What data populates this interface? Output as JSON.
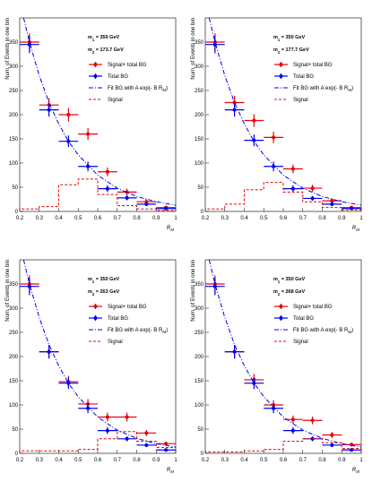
{
  "chart_data": [
    {
      "type": "errorbar",
      "ylabel": "Num. of Events in one bin",
      "xlabel": "R_{M}",
      "annotations": [
        "m_{1} = 350 GeV",
        "m_{2} = 173.7 GeV"
      ],
      "x": [
        0.25,
        0.35,
        0.45,
        0.55,
        0.65,
        0.75,
        0.85,
        0.95
      ],
      "xerr": 0.05,
      "xlim": [
        0.2,
        1
      ],
      "ylim": [
        0,
        400
      ],
      "xticks": [
        0.2,
        0.3,
        0.4,
        0.5,
        0.6,
        0.7,
        0.8,
        0.9,
        1
      ],
      "yticks": [
        0,
        50,
        100,
        150,
        200,
        250,
        300,
        350
      ],
      "series": [
        {
          "name": "Signal+ total BG",
          "color": "#e8000b",
          "values": [
            350,
            220,
            200,
            160,
            82,
            40,
            20,
            8
          ],
          "errors": [
            18,
            14,
            14,
            12,
            9,
            7,
            5,
            3
          ]
        },
        {
          "name": "Total BG",
          "color": "#0000ee",
          "values": [
            345,
            210,
            145,
            93,
            47,
            28,
            15,
            6
          ],
          "errors": [
            18,
            14,
            12,
            10,
            7,
            5,
            4,
            2
          ]
        },
        {
          "name": "Fit BG with A exp(- B R_{M})",
          "color": "#0000ee",
          "style": "dash-dot",
          "x": [
            0.22,
            0.25,
            0.3,
            0.35,
            0.4,
            0.45,
            0.5,
            0.6,
            0.7,
            0.8,
            0.9,
            1.0
          ],
          "values": [
            400,
            350,
            281,
            225,
            181,
            145,
            117,
            75,
            48,
            31,
            20,
            13
          ]
        },
        {
          "name": "Signal",
          "color": "#e8000b",
          "style": "dashed",
          "bins": [
            0.2,
            0.3,
            0.4,
            0.5,
            0.6,
            0.7,
            0.8,
            0.9,
            1.0
          ],
          "values": [
            5,
            10,
            55,
            67,
            35,
            12,
            5,
            2
          ]
        }
      ]
    },
    {
      "type": "errorbar",
      "ylabel": "Num. of Events in one bin",
      "xlabel": "R_{M}",
      "annotations": [
        "m_{1} = 350 GeV",
        "m_{2} = 177.7 GeV"
      ],
      "x": [
        0.25,
        0.35,
        0.45,
        0.55,
        0.65,
        0.75,
        0.85,
        0.95
      ],
      "xerr": 0.05,
      "xlim": [
        0.2,
        1
      ],
      "ylim": [
        0,
        400
      ],
      "xticks": [
        0.2,
        0.3,
        0.4,
        0.5,
        0.6,
        0.7,
        0.8,
        0.9,
        1
      ],
      "yticks": [
        0,
        50,
        100,
        150,
        200,
        250,
        300,
        350
      ],
      "series": [
        {
          "name": "Signal+ total BG",
          "color": "#e8000b",
          "values": [
            350,
            225,
            188,
            153,
            88,
            48,
            22,
            8
          ],
          "errors": [
            18,
            14,
            13,
            12,
            9,
            7,
            5,
            3
          ]
        },
        {
          "name": "Total BG",
          "color": "#0000ee",
          "values": [
            345,
            210,
            147,
            93,
            47,
            27,
            15,
            6
          ],
          "errors": [
            18,
            14,
            12,
            10,
            7,
            5,
            4,
            2
          ]
        },
        {
          "name": "Fit BG with A exp(- B R_{M})",
          "color": "#0000ee",
          "style": "dash-dot",
          "x": [
            0.22,
            0.25,
            0.3,
            0.35,
            0.4,
            0.45,
            0.5,
            0.6,
            0.7,
            0.8,
            0.9,
            1.0
          ],
          "values": [
            400,
            350,
            281,
            225,
            181,
            145,
            117,
            75,
            48,
            31,
            20,
            13
          ]
        },
        {
          "name": "Signal",
          "color": "#e8000b",
          "style": "dashed",
          "bins": [
            0.2,
            0.3,
            0.4,
            0.5,
            0.6,
            0.7,
            0.8,
            0.9,
            1.0
          ],
          "values": [
            5,
            15,
            45,
            60,
            40,
            20,
            8,
            3
          ]
        }
      ]
    },
    {
      "type": "errorbar",
      "ylabel": "Num. of Events in one bin",
      "xlabel": "R_{M}",
      "annotations": [
        "m_{1} = 350 GeV",
        "m_{2} = 263 GeV"
      ],
      "x": [
        0.25,
        0.35,
        0.45,
        0.55,
        0.65,
        0.75,
        0.85,
        0.95
      ],
      "xerr": 0.05,
      "xlim": [
        0.2,
        1
      ],
      "ylim": [
        0,
        400
      ],
      "xticks": [
        0.2,
        0.3,
        0.4,
        0.5,
        0.6,
        0.7,
        0.8,
        0.9,
        1
      ],
      "yticks": [
        0,
        50,
        100,
        150,
        200,
        250,
        300,
        350
      ],
      "series": [
        {
          "name": "Signal+ total BG",
          "color": "#e8000b",
          "values": [
            350,
            210,
            148,
            102,
            75,
            75,
            42,
            20
          ],
          "errors": [
            18,
            14,
            12,
            10,
            9,
            9,
            6,
            4
          ]
        },
        {
          "name": "Total BG",
          "color": "#0000ee",
          "values": [
            345,
            210,
            145,
            93,
            47,
            30,
            17,
            7
          ],
          "errors": [
            18,
            14,
            12,
            10,
            7,
            5,
            4,
            2
          ]
        },
        {
          "name": "Fit BG with A exp(- B R_{M})",
          "color": "#0000ee",
          "style": "dash-dot",
          "x": [
            0.22,
            0.25,
            0.3,
            0.35,
            0.4,
            0.45,
            0.5,
            0.6,
            0.7,
            0.8,
            0.9,
            1.0
          ],
          "values": [
            400,
            350,
            281,
            225,
            181,
            145,
            117,
            75,
            48,
            31,
            20,
            13
          ]
        },
        {
          "name": "Signal",
          "color": "#e8000b",
          "style": "dashed",
          "bins": [
            0.2,
            0.3,
            0.4,
            0.5,
            0.6,
            0.7,
            0.8,
            0.9,
            1.0
          ],
          "values": [
            5,
            5,
            5,
            8,
            30,
            45,
            25,
            12
          ]
        }
      ]
    },
    {
      "type": "errorbar",
      "ylabel": "Num. of Events in one bin",
      "xlabel": "R_{M}",
      "annotations": [
        "m_{1} = 350 GeV",
        "m_{2} = 268 GeV"
      ],
      "x": [
        0.25,
        0.35,
        0.45,
        0.55,
        0.65,
        0.75,
        0.85,
        0.95
      ],
      "xerr": 0.05,
      "xlim": [
        0.2,
        1
      ],
      "ylim": [
        0,
        400
      ],
      "xticks": [
        0.2,
        0.3,
        0.4,
        0.5,
        0.6,
        0.7,
        0.8,
        0.9,
        1
      ],
      "yticks": [
        0,
        50,
        100,
        150,
        200,
        250,
        300,
        350
      ],
      "series": [
        {
          "name": "Signal+ total BG",
          "color": "#e8000b",
          "values": [
            350,
            210,
            152,
            100,
            70,
            68,
            38,
            18
          ],
          "errors": [
            18,
            14,
            12,
            10,
            8,
            8,
            6,
            4
          ]
        },
        {
          "name": "Total BG",
          "color": "#0000ee",
          "values": [
            345,
            210,
            145,
            93,
            47,
            30,
            17,
            7
          ],
          "errors": [
            18,
            14,
            12,
            10,
            7,
            5,
            4,
            2
          ]
        },
        {
          "name": "Fit BG with A exp(- B R_{M})",
          "color": "#0000ee",
          "style": "dash-dot",
          "x": [
            0.22,
            0.25,
            0.3,
            0.35,
            0.4,
            0.45,
            0.5,
            0.6,
            0.7,
            0.8,
            0.9,
            1.0
          ],
          "values": [
            400,
            350,
            281,
            225,
            181,
            145,
            117,
            75,
            48,
            31,
            20,
            13
          ]
        },
        {
          "name": "Signal",
          "color": "#e8000b",
          "style": "dashed",
          "bins": [
            0.2,
            0.3,
            0.4,
            0.5,
            0.6,
            0.7,
            0.8,
            0.9,
            1.0
          ],
          "values": [
            3,
            3,
            5,
            8,
            25,
            30,
            22,
            10
          ]
        }
      ]
    }
  ]
}
